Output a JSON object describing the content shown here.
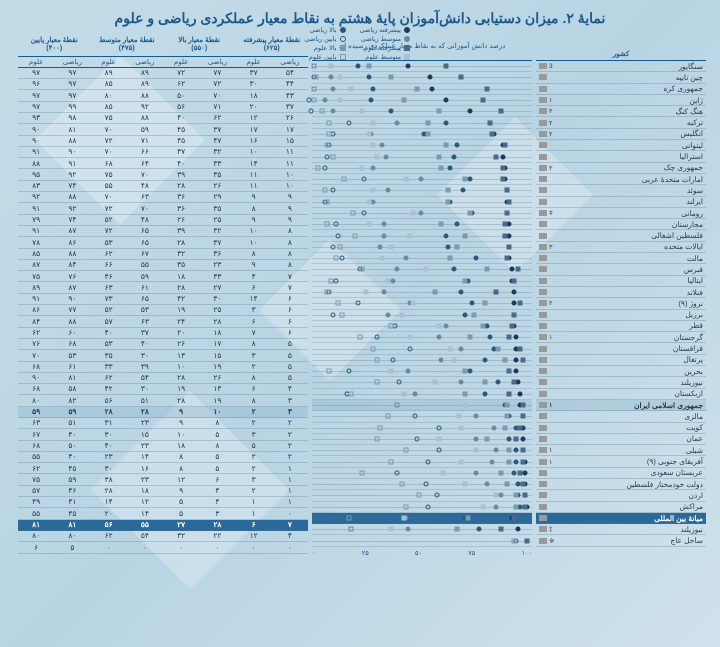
{
  "title": "نمایهٔ ۲. میزان دستیابی دانش‌آموزان پایهٔ هشتم به نقاط معیار عملکردی ریاضی و علوم",
  "column_groups": [
    {
      "label": "نقطهٔ معیار پایین",
      "sub": "(۴۰۰)"
    },
    {
      "label": "نقطهٔ معیار متوسط",
      "sub": "(۴۷۵)"
    },
    {
      "label": "نقطهٔ معیار بالا",
      "sub": "(۵۵۰)"
    },
    {
      "label": "نقطهٔ معیار پیشرفته",
      "sub": "(۶۲۵)"
    }
  ],
  "sub_headers": [
    "علوم",
    "ریاضی",
    "علوم",
    "ریاضی",
    "علوم",
    "ریاضی",
    "علوم",
    "ریاضی"
  ],
  "country_header": "کشور",
  "chart_header": "درصد دانش آموزانی که\nبه نقاط معیار عملکردی رسیده اند",
  "legend": {
    "col1": [
      {
        "label": "بالا ریاضی",
        "shape": "circle",
        "fill": "#2a5a7a",
        "stroke": "#2a5a7a"
      },
      {
        "label": "پایین ریاضی",
        "shape": "circle",
        "fill": "none",
        "stroke": "#2a5a7a"
      },
      {
        "label": "بالا علوم",
        "shape": "square",
        "fill": "#7a9ab0",
        "stroke": "#7a9ab0"
      },
      {
        "label": "پایین علوم",
        "shape": "square",
        "fill": "none",
        "stroke": "#7a9ab0"
      }
    ],
    "col2": [
      {
        "label": "پیشرفته ریاضی",
        "shape": "circle",
        "fill": "#1a3a5a",
        "stroke": "#1a3a5a"
      },
      {
        "label": "متوسط ریاضی",
        "shape": "circle",
        "fill": "#6a8aa0",
        "stroke": "#6a8aa0"
      },
      {
        "label": "پیشرفته علوم",
        "shape": "square",
        "fill": "#4a6a8a",
        "stroke": "#4a6a8a"
      },
      {
        "label": "متوسط علوم",
        "shape": "square",
        "fill": "#aac0d0",
        "stroke": "#aac0d0"
      }
    ]
  },
  "axis_ticks": [
    "۰",
    "۲۵",
    "۵۰",
    "۷۵",
    "۱۰۰"
  ],
  "marker_colors": {
    "math_adv": "#1a3a5a",
    "math_high": "#2a5a7a",
    "math_mid": "#6a8aa0",
    "math_low_stroke": "#2a5a7a",
    "sci_adv": "#4a6a8a",
    "sci_high": "#7a9ab0",
    "sci_mid": "#aac0d0",
    "sci_low_stroke": "#7a9ab0"
  },
  "rows": [
    {
      "name": "سنگاپور",
      "rank": "3",
      "hl": "",
      "d": [
        "۹۷",
        "۹۷",
        "۸۹",
        "۸۹",
        "۷۲",
        "۷۷",
        "۳۷",
        "۵۴"
      ],
      "m": [
        97,
        97,
        89,
        89,
        72,
        77,
        37,
        54
      ]
    },
    {
      "name": "چین تایپه",
      "rank": "",
      "hl": "",
      "d": [
        "۹۶",
        "۹۷",
        "۸۵",
        "۸۹",
        "۶۲",
        "۷۲",
        "۳۰",
        "۴۴"
      ],
      "m": [
        96,
        97,
        85,
        89,
        62,
        72,
        30,
        44
      ]
    },
    {
      "name": "جمهوری کره",
      "rank": "",
      "hl": "",
      "d": [
        "۹۷",
        "۹۷",
        "۸۰",
        "۸۸",
        "۵۰",
        "۷۰",
        "۱۸",
        "۴۳"
      ],
      "m": [
        97,
        97,
        80,
        88,
        50,
        70,
        18,
        43
      ]
    },
    {
      "name": "ژاپن",
      "rank": "۱",
      "hl": "",
      "d": [
        "۹۷",
        "۹۹",
        "۸۵",
        "۹۲",
        "۵۶",
        "۷۱",
        "۲۰",
        "۳۷"
      ],
      "m": [
        97,
        99,
        85,
        92,
        56,
        71,
        20,
        37
      ]
    },
    {
      "name": "هنگ کنگ",
      "rank": "۲",
      "hl": "",
      "d": [
        "۹۳",
        "۹۸",
        "۷۵",
        "۸۸",
        "۴۰",
        "۶۲",
        "۱۲",
        "۲۶"
      ],
      "m": [
        93,
        98,
        75,
        88,
        40,
        62,
        12,
        26
      ]
    },
    {
      "name": "ترکیه",
      "rank": "۲",
      "hl": "",
      "d": [
        "۹۰",
        "۸۱",
        "۷۰",
        "۵۹",
        "۴۵",
        "۳۷",
        "۱۷",
        "۱۷"
      ],
      "m": [
        90,
        81,
        70,
        59,
        45,
        37,
        17,
        17
      ]
    },
    {
      "name": "انگلیس",
      "rank": "۲",
      "hl": "",
      "d": [
        "۹۰",
        "۸۸",
        "۷۲",
        "۷۱",
        "۴۵",
        "۴۷",
        "۱۶",
        "۱۵"
      ],
      "m": [
        90,
        88,
        72,
        71,
        45,
        47,
        16,
        15
      ]
    },
    {
      "name": "لیتوانی",
      "rank": "",
      "hl": "",
      "d": [
        "۹۱",
        "۹۰",
        "۷۰",
        "۶۶",
        "۳۷",
        "۳۲",
        "۱۰",
        "۱۱"
      ],
      "m": [
        91,
        90,
        70,
        66,
        37,
        32,
        10,
        11
      ]
    },
    {
      "name": "استرالیا",
      "rank": "",
      "hl": "",
      "d": [
        "۸۸",
        "۹۱",
        "۶۸",
        "۶۴",
        "۴۰",
        "۳۳",
        "۱۴",
        "۱۱"
      ],
      "m": [
        88,
        91,
        68,
        64,
        40,
        33,
        14,
        11
      ]
    },
    {
      "name": "جمهوری چک",
      "rank": "۲",
      "hl": "",
      "d": [
        "۹۵",
        "۹۲",
        "۷۵",
        "۷۰",
        "۳۹",
        "۳۵",
        "۱۱",
        "۱۰"
      ],
      "m": [
        95,
        92,
        75,
        70,
        39,
        35,
        11,
        10
      ]
    },
    {
      "name": "امارات متحدهٔ عربی",
      "rank": "",
      "hl": "",
      "d": [
        "۸۳",
        "۷۴",
        "۵۵",
        "۴۸",
        "۲۸",
        "۲۶",
        "۱۱",
        "۱۰"
      ],
      "m": [
        83,
        74,
        55,
        48,
        28,
        26,
        11,
        10
      ]
    },
    {
      "name": "سوئد",
      "rank": "",
      "hl": "",
      "d": [
        "۹۲",
        "۸۸",
        "۷۰",
        "۶۳",
        "۳۶",
        "۲۹",
        "۹",
        "۹"
      ],
      "m": [
        92,
        88,
        70,
        63,
        36,
        29,
        9,
        9
      ]
    },
    {
      "name": "ایرلند",
      "rank": "",
      "hl": "",
      "d": [
        "۹۱",
        "۹۲",
        "۷۲",
        "۷۰",
        "۳۶",
        "۳۵",
        "۸",
        "۹"
      ],
      "m": [
        91,
        92,
        72,
        70,
        36,
        35,
        8,
        9
      ]
    },
    {
      "name": "رومانی",
      "rank": "ǂ",
      "hl": "",
      "d": [
        "۷۹",
        "۷۴",
        "۵۲",
        "۴۸",
        "۲۶",
        "۲۵",
        "۹",
        "۹"
      ],
      "m": [
        79,
        74,
        52,
        48,
        26,
        25,
        9,
        9
      ]
    },
    {
      "name": "مجارستان",
      "rank": "",
      "hl": "",
      "d": [
        "۹۱",
        "۸۷",
        "۷۲",
        "۶۵",
        "۳۹",
        "۳۲",
        "۱۰",
        "۸"
      ],
      "m": [
        91,
        87,
        72,
        65,
        39,
        32,
        10,
        8
      ]
    },
    {
      "name": "فلسطین اشغالی",
      "rank": "",
      "hl": "",
      "d": [
        "۷۸",
        "۸۶",
        "۵۳",
        "۶۵",
        "۲۸",
        "۳۷",
        "۱۰",
        "۸"
      ],
      "m": [
        78,
        86,
        53,
        65,
        28,
        37,
        10,
        8
      ]
    },
    {
      "name": "ایالات متحده",
      "rank": "۳",
      "hl": "",
      "d": [
        "۸۵",
        "۸۸",
        "۶۲",
        "۶۷",
        "۳۲",
        "۳۶",
        "۸",
        "۸"
      ],
      "m": [
        85,
        88,
        62,
        67,
        32,
        36,
        8,
        8
      ]
    },
    {
      "name": "مالت",
      "rank": "",
      "hl": "",
      "d": [
        "۸۷",
        "۸۴",
        "۶۶",
        "۵۵",
        "۳۵",
        "۲۳",
        "۹",
        "۸"
      ],
      "m": [
        87,
        84,
        66,
        55,
        35,
        23,
        9,
        8
      ]
    },
    {
      "name": "قبرس",
      "rank": "",
      "hl": "",
      "d": [
        "۷۵",
        "۷۶",
        "۴۶",
        "۵۹",
        "۱۸",
        "۳۳",
        "۴",
        "۷"
      ],
      "m": [
        75,
        76,
        46,
        59,
        18,
        33,
        4,
        7
      ]
    },
    {
      "name": "ایتالیا",
      "rank": "",
      "hl": "",
      "d": [
        "۸۹",
        "۸۷",
        "۶۳",
        "۶۱",
        "۲۸",
        "۲۷",
        "۶",
        "۷"
      ],
      "m": [
        89,
        87,
        63,
        61,
        28,
        27,
        6,
        7
      ]
    },
    {
      "name": "فنلاند",
      "rank": "",
      "hl": "",
      "d": [
        "۹۱",
        "۹۰",
        "۷۳",
        "۶۵",
        "۴۲",
        "۳۰",
        "۱۴",
        "۶"
      ],
      "m": [
        91,
        90,
        73,
        65,
        42,
        30,
        14,
        6
      ]
    },
    {
      "name": "نروژ (۹)",
      "rank": "۲",
      "hl": "",
      "d": [
        "۸۶",
        "۷۷",
        "۵۲",
        "۵۳",
        "۱۹",
        "۲۵",
        "۳",
        "۶"
      ],
      "m": [
        86,
        77,
        52,
        53,
        19,
        25,
        3,
        6
      ]
    },
    {
      "name": "برزیل",
      "rank": "",
      "hl": "",
      "d": [
        "۸۴",
        "۸۸",
        "۵۷",
        "۶۳",
        "۲۴",
        "۲۸",
        "۶",
        "۶"
      ],
      "m": [
        84,
        88,
        57,
        63,
        24,
        28,
        6,
        6
      ]
    },
    {
      "name": "قطر",
      "rank": "",
      "hl": "",
      "d": [
        "۶۲",
        "۶۰",
        "۴۰",
        "۳۷",
        "۲۰",
        "۱۸",
        "۷",
        "۶"
      ],
      "m": [
        62,
        60,
        40,
        37,
        20,
        18,
        7,
        6
      ]
    },
    {
      "name": "گرجستان",
      "rank": "۱",
      "hl": "",
      "d": [
        "۷۶",
        "۶۸",
        "۵۳",
        "۴۰",
        "۲۶",
        "۱۷",
        "۸",
        "۵"
      ],
      "m": [
        76,
        68,
        53,
        40,
        26,
        17,
        8,
        5
      ]
    },
    {
      "name": "قزاقستان",
      "rank": "",
      "hl": "",
      "d": [
        "۷۰",
        "۵۳",
        "۳۵",
        "۳۰",
        "۱۳",
        "۱۵",
        "۳",
        "۵"
      ],
      "m": [
        70,
        53,
        35,
        30,
        13,
        15,
        3,
        5
      ]
    },
    {
      "name": "پرتغال",
      "rank": "",
      "hl": "",
      "d": [
        "۶۸",
        "۶۱",
        "۳۳",
        "۳۹",
        "۱۰",
        "۱۹",
        "۲",
        "۵"
      ],
      "m": [
        68,
        61,
        33,
        39,
        10,
        19,
        2,
        5
      ]
    },
    {
      "name": "بحرین",
      "rank": "",
      "hl": "",
      "d": [
        "۹۰",
        "۸۱",
        "۶۲",
        "۵۴",
        "۲۸",
        "۲۶",
        "۸",
        "۵"
      ],
      "m": [
        90,
        81,
        62,
        54,
        28,
        26,
        8,
        5
      ]
    },
    {
      "name": "نیوزیلند",
      "rank": "",
      "hl": "",
      "d": [
        "۶۸",
        "۵۸",
        "۴۲",
        "۳۰",
        "۱۹",
        "۱۳",
        "۶",
        "۴"
      ],
      "m": [
        68,
        58,
        42,
        30,
        19,
        13,
        6,
        4
      ]
    },
    {
      "name": "ازبکستان",
      "rank": "",
      "hl": "",
      "d": [
        "۸۰",
        "۸۲",
        "۵۶",
        "۵۱",
        "۲۸",
        "۱۹",
        "۸",
        "۳"
      ],
      "m": [
        80,
        82,
        56,
        51,
        28,
        19,
        8,
        3
      ]
    },
    {
      "name": "جمهوری اسلامی ایران",
      "rank": "۱",
      "hl": "iran",
      "d": [
        "۵۹",
        "۵۹",
        "۲۸",
        "۲۸",
        "۹",
        "۱۰",
        "۲",
        "۳"
      ],
      "m": [
        59,
        59,
        28,
        28,
        9,
        10,
        2,
        3
      ]
    },
    {
      "name": "مالزی",
      "rank": "",
      "hl": "",
      "d": [
        "۶۳",
        "۵۱",
        "۳۱",
        "۲۳",
        "۹",
        "۸",
        "۲",
        "۲"
      ],
      "m": [
        63,
        51,
        31,
        23,
        9,
        8,
        2,
        2
      ]
    },
    {
      "name": "کویت",
      "rank": "",
      "hl": "",
      "d": [
        "۶۷",
        "۴۰",
        "۳۰",
        "۱۵",
        "۱۰",
        "۵",
        "۳",
        "۲"
      ],
      "m": [
        67,
        40,
        30,
        15,
        10,
        5,
        3,
        2
      ]
    },
    {
      "name": "عمان",
      "rank": "",
      "hl": "",
      "d": [
        "۶۸",
        "۵۰",
        "۴۰",
        "۲۳",
        "۱۸",
        "۸",
        "۵",
        "۲"
      ],
      "m": [
        68,
        50,
        40,
        23,
        18,
        8,
        5,
        2
      ]
    },
    {
      "name": "شیلی",
      "rank": "۱",
      "hl": "",
      "d": [
        "۵۵",
        "۴۰",
        "۲۳",
        "۱۴",
        "۸",
        "۵",
        "۲",
        "۲"
      ],
      "m": [
        55,
        40,
        23,
        14,
        8,
        5,
        2,
        2
      ]
    },
    {
      "name": "آفریقای جنوبی (۹)",
      "rank": "۱",
      "hl": "",
      "d": [
        "۶۲",
        "۴۵",
        "۳۰",
        "۱۶",
        "۸",
        "۵",
        "۲",
        "۱"
      ],
      "m": [
        62,
        45,
        30,
        16,
        8,
        5,
        2,
        1
      ]
    },
    {
      "name": "عربستان سعودی",
      "rank": "",
      "hl": "",
      "d": [
        "۷۵",
        "۵۹",
        "۳۸",
        "۲۳",
        "۱۲",
        "۶",
        "۳",
        "۱"
      ],
      "m": [
        75,
        59,
        38,
        23,
        12,
        6,
        3,
        1
      ]
    },
    {
      "name": "دولت خودمختار فلسطین",
      "rank": "",
      "hl": "",
      "d": [
        "۵۷",
        "۴۶",
        "۲۸",
        "۱۸",
        "۹",
        "۴",
        "۲",
        "۱"
      ],
      "m": [
        57,
        46,
        28,
        18,
        9,
        4,
        2,
        1
      ]
    },
    {
      "name": "اردن",
      "rank": "",
      "hl": "",
      "d": [
        "۴۹",
        "۴۱",
        "۱۴",
        "۱۲",
        "۵",
        "۴",
        "۱",
        "۱"
      ],
      "m": [
        49,
        41,
        14,
        12,
        5,
        4,
        1,
        1
      ]
    },
    {
      "name": "مراکش",
      "rank": "",
      "hl": "",
      "d": [
        "۵۵",
        "۴۵",
        "۲۰",
        "۱۴",
        "۵",
        "۳",
        "۱",
        "۰"
      ],
      "m": [
        55,
        45,
        20,
        14,
        5,
        3,
        1,
        0
      ]
    },
    {
      "name": "میانهٔ بین المللی",
      "rank": "",
      "hl": "median",
      "d": [
        "۸۱",
        "۸۱",
        "۵۶",
        "۵۵",
        "۲۷",
        "۲۸",
        "۶",
        "۷"
      ],
      "m": [
        81,
        81,
        56,
        55,
        27,
        28,
        6,
        7
      ]
    },
    {
      "name": "نیوزیلند",
      "rank": "‡",
      "hl": "",
      "d": [
        "۸۰",
        "۸۰",
        "۶۲",
        "۵۴",
        "۳۲",
        "۲۲",
        "۱۲",
        "۴"
      ],
      "m": [
        80,
        80,
        62,
        54,
        32,
        22,
        12,
        4
      ]
    },
    {
      "name": "ساحل عاج",
      "rank": "※",
      "hl": "",
      "d": [
        "۶",
        "۵",
        "۰",
        "۰",
        "۰",
        "۰",
        "۰",
        "۰"
      ],
      "m": [
        6,
        5,
        0,
        0,
        0,
        0,
        0,
        0
      ]
    }
  ]
}
